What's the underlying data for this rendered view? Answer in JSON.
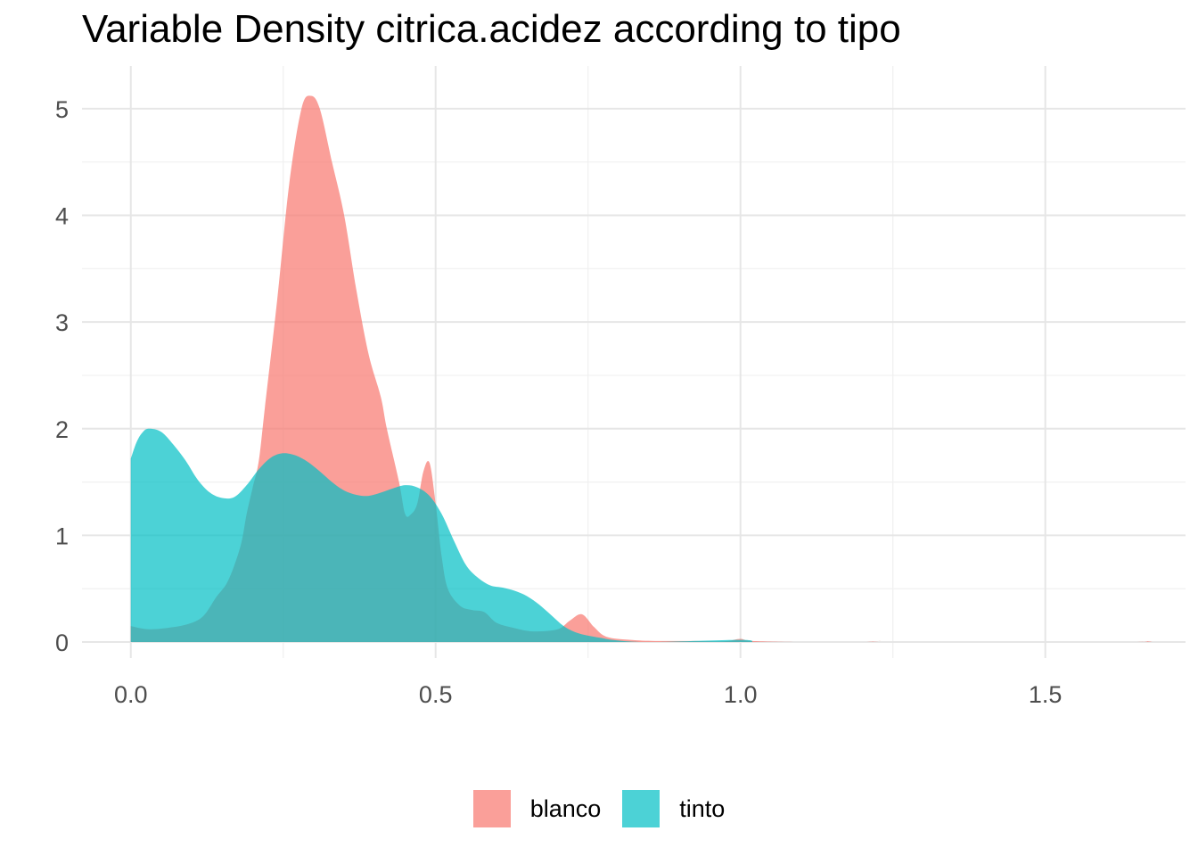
{
  "chart_data": {
    "type": "area",
    "title": "Variable Density citrica.acidez according to tipo",
    "xlabel": "",
    "ylabel": "",
    "xlim": [
      -0.08,
      1.73
    ],
    "ylim": [
      -0.15,
      5.4
    ],
    "x_ticks": [
      0.0,
      0.5,
      1.0,
      1.5
    ],
    "x_tick_labels": [
      "0.0",
      "0.5",
      "1.0",
      "1.5"
    ],
    "y_ticks": [
      0,
      1,
      2,
      3,
      4,
      5
    ],
    "y_tick_labels": [
      "0",
      "1",
      "2",
      "3",
      "4",
      "5"
    ],
    "grid": true,
    "legend_position": "bottom",
    "series": [
      {
        "name": "blanco",
        "color": "#F8766D",
        "points": [
          [
            0.0,
            0.15
          ],
          [
            0.03,
            0.12
          ],
          [
            0.07,
            0.14
          ],
          [
            0.1,
            0.18
          ],
          [
            0.12,
            0.25
          ],
          [
            0.14,
            0.42
          ],
          [
            0.16,
            0.58
          ],
          [
            0.18,
            0.9
          ],
          [
            0.19,
            1.2
          ],
          [
            0.2,
            1.45
          ],
          [
            0.21,
            1.7
          ],
          [
            0.22,
            2.2
          ],
          [
            0.24,
            3.2
          ],
          [
            0.26,
            4.3
          ],
          [
            0.28,
            5.0
          ],
          [
            0.295,
            5.12
          ],
          [
            0.31,
            5.0
          ],
          [
            0.33,
            4.5
          ],
          [
            0.35,
            4.0
          ],
          [
            0.37,
            3.3
          ],
          [
            0.39,
            2.7
          ],
          [
            0.41,
            2.3
          ],
          [
            0.42,
            2.0
          ],
          [
            0.44,
            1.5
          ],
          [
            0.45,
            1.2
          ],
          [
            0.46,
            1.2
          ],
          [
            0.47,
            1.3
          ],
          [
            0.48,
            1.6
          ],
          [
            0.49,
            1.68
          ],
          [
            0.5,
            1.3
          ],
          [
            0.51,
            0.8
          ],
          [
            0.52,
            0.5
          ],
          [
            0.54,
            0.34
          ],
          [
            0.56,
            0.3
          ],
          [
            0.58,
            0.28
          ],
          [
            0.6,
            0.18
          ],
          [
            0.63,
            0.13
          ],
          [
            0.66,
            0.1
          ],
          [
            0.7,
            0.12
          ],
          [
            0.72,
            0.2
          ],
          [
            0.74,
            0.26
          ],
          [
            0.76,
            0.14
          ],
          [
            0.78,
            0.05
          ],
          [
            0.82,
            0.02
          ],
          [
            0.86,
            0.01
          ],
          [
            0.92,
            0.01
          ],
          [
            0.96,
            0.005
          ],
          [
            0.98,
            0.01
          ],
          [
            1.0,
            0.03
          ],
          [
            1.02,
            0.01
          ],
          [
            1.1,
            0.0
          ],
          [
            1.2,
            0.0
          ],
          [
            1.23,
            0.01
          ],
          [
            1.25,
            0.0
          ],
          [
            1.64,
            0.0
          ],
          [
            1.66,
            0.01
          ],
          [
            1.67,
            0.0
          ]
        ]
      },
      {
        "name": "tinto",
        "color": "#00BFC4",
        "points": [
          [
            0.0,
            1.72
          ],
          [
            0.01,
            1.88
          ],
          [
            0.02,
            1.97
          ],
          [
            0.03,
            2.0
          ],
          [
            0.05,
            1.97
          ],
          [
            0.07,
            1.85
          ],
          [
            0.09,
            1.7
          ],
          [
            0.11,
            1.52
          ],
          [
            0.13,
            1.4
          ],
          [
            0.15,
            1.35
          ],
          [
            0.17,
            1.36
          ],
          [
            0.19,
            1.47
          ],
          [
            0.21,
            1.62
          ],
          [
            0.23,
            1.73
          ],
          [
            0.25,
            1.77
          ],
          [
            0.27,
            1.75
          ],
          [
            0.29,
            1.69
          ],
          [
            0.31,
            1.6
          ],
          [
            0.33,
            1.5
          ],
          [
            0.35,
            1.42
          ],
          [
            0.37,
            1.38
          ],
          [
            0.39,
            1.37
          ],
          [
            0.41,
            1.4
          ],
          [
            0.43,
            1.44
          ],
          [
            0.45,
            1.47
          ],
          [
            0.47,
            1.45
          ],
          [
            0.49,
            1.37
          ],
          [
            0.51,
            1.2
          ],
          [
            0.53,
            0.95
          ],
          [
            0.55,
            0.72
          ],
          [
            0.57,
            0.6
          ],
          [
            0.59,
            0.53
          ],
          [
            0.61,
            0.51
          ],
          [
            0.63,
            0.48
          ],
          [
            0.65,
            0.43
          ],
          [
            0.67,
            0.35
          ],
          [
            0.69,
            0.25
          ],
          [
            0.71,
            0.15
          ],
          [
            0.73,
            0.09
          ],
          [
            0.75,
            0.06
          ],
          [
            0.77,
            0.04
          ],
          [
            0.79,
            0.02
          ],
          [
            0.82,
            0.005
          ],
          [
            0.86,
            0.0
          ],
          [
            1.0,
            0.02
          ],
          [
            1.02,
            0.0
          ]
        ]
      }
    ]
  }
}
